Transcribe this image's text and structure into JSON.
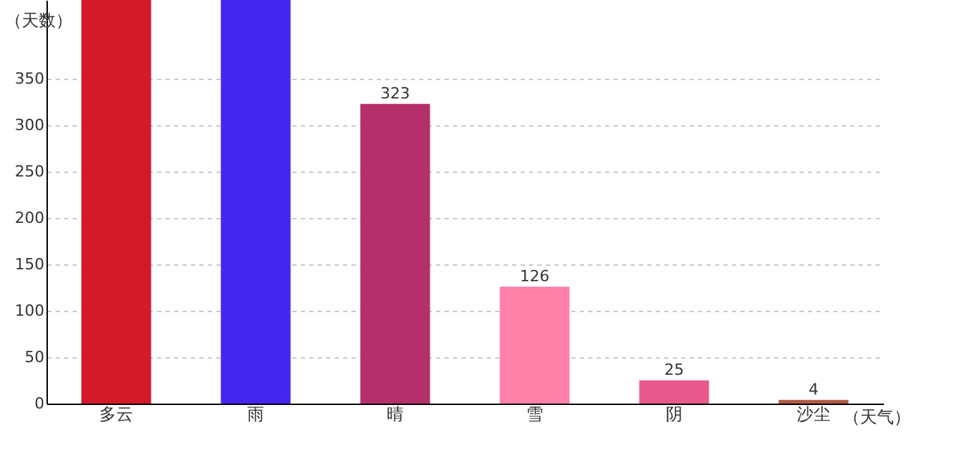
{
  "chart_data": {
    "type": "bar",
    "xlabel": "（天气）",
    "ylabel": "（天数）",
    "categories": [
      "多云",
      "雨",
      "晴",
      "雪",
      "阴",
      "沙尘"
    ],
    "values": [
      435,
      435,
      323,
      126,
      25,
      4
    ],
    "value_labels": [
      null,
      null,
      "323",
      "126",
      "25",
      "4"
    ],
    "colors": [
      "#d31a2b",
      "#4426f0",
      "#b5306a",
      "#ff80a8",
      "#e8588a",
      "#b05a4a"
    ],
    "ylim": [
      0,
      435
    ],
    "yticks": [
      0,
      50,
      100,
      150,
      200,
      250,
      300,
      350
    ],
    "grid": "y"
  }
}
